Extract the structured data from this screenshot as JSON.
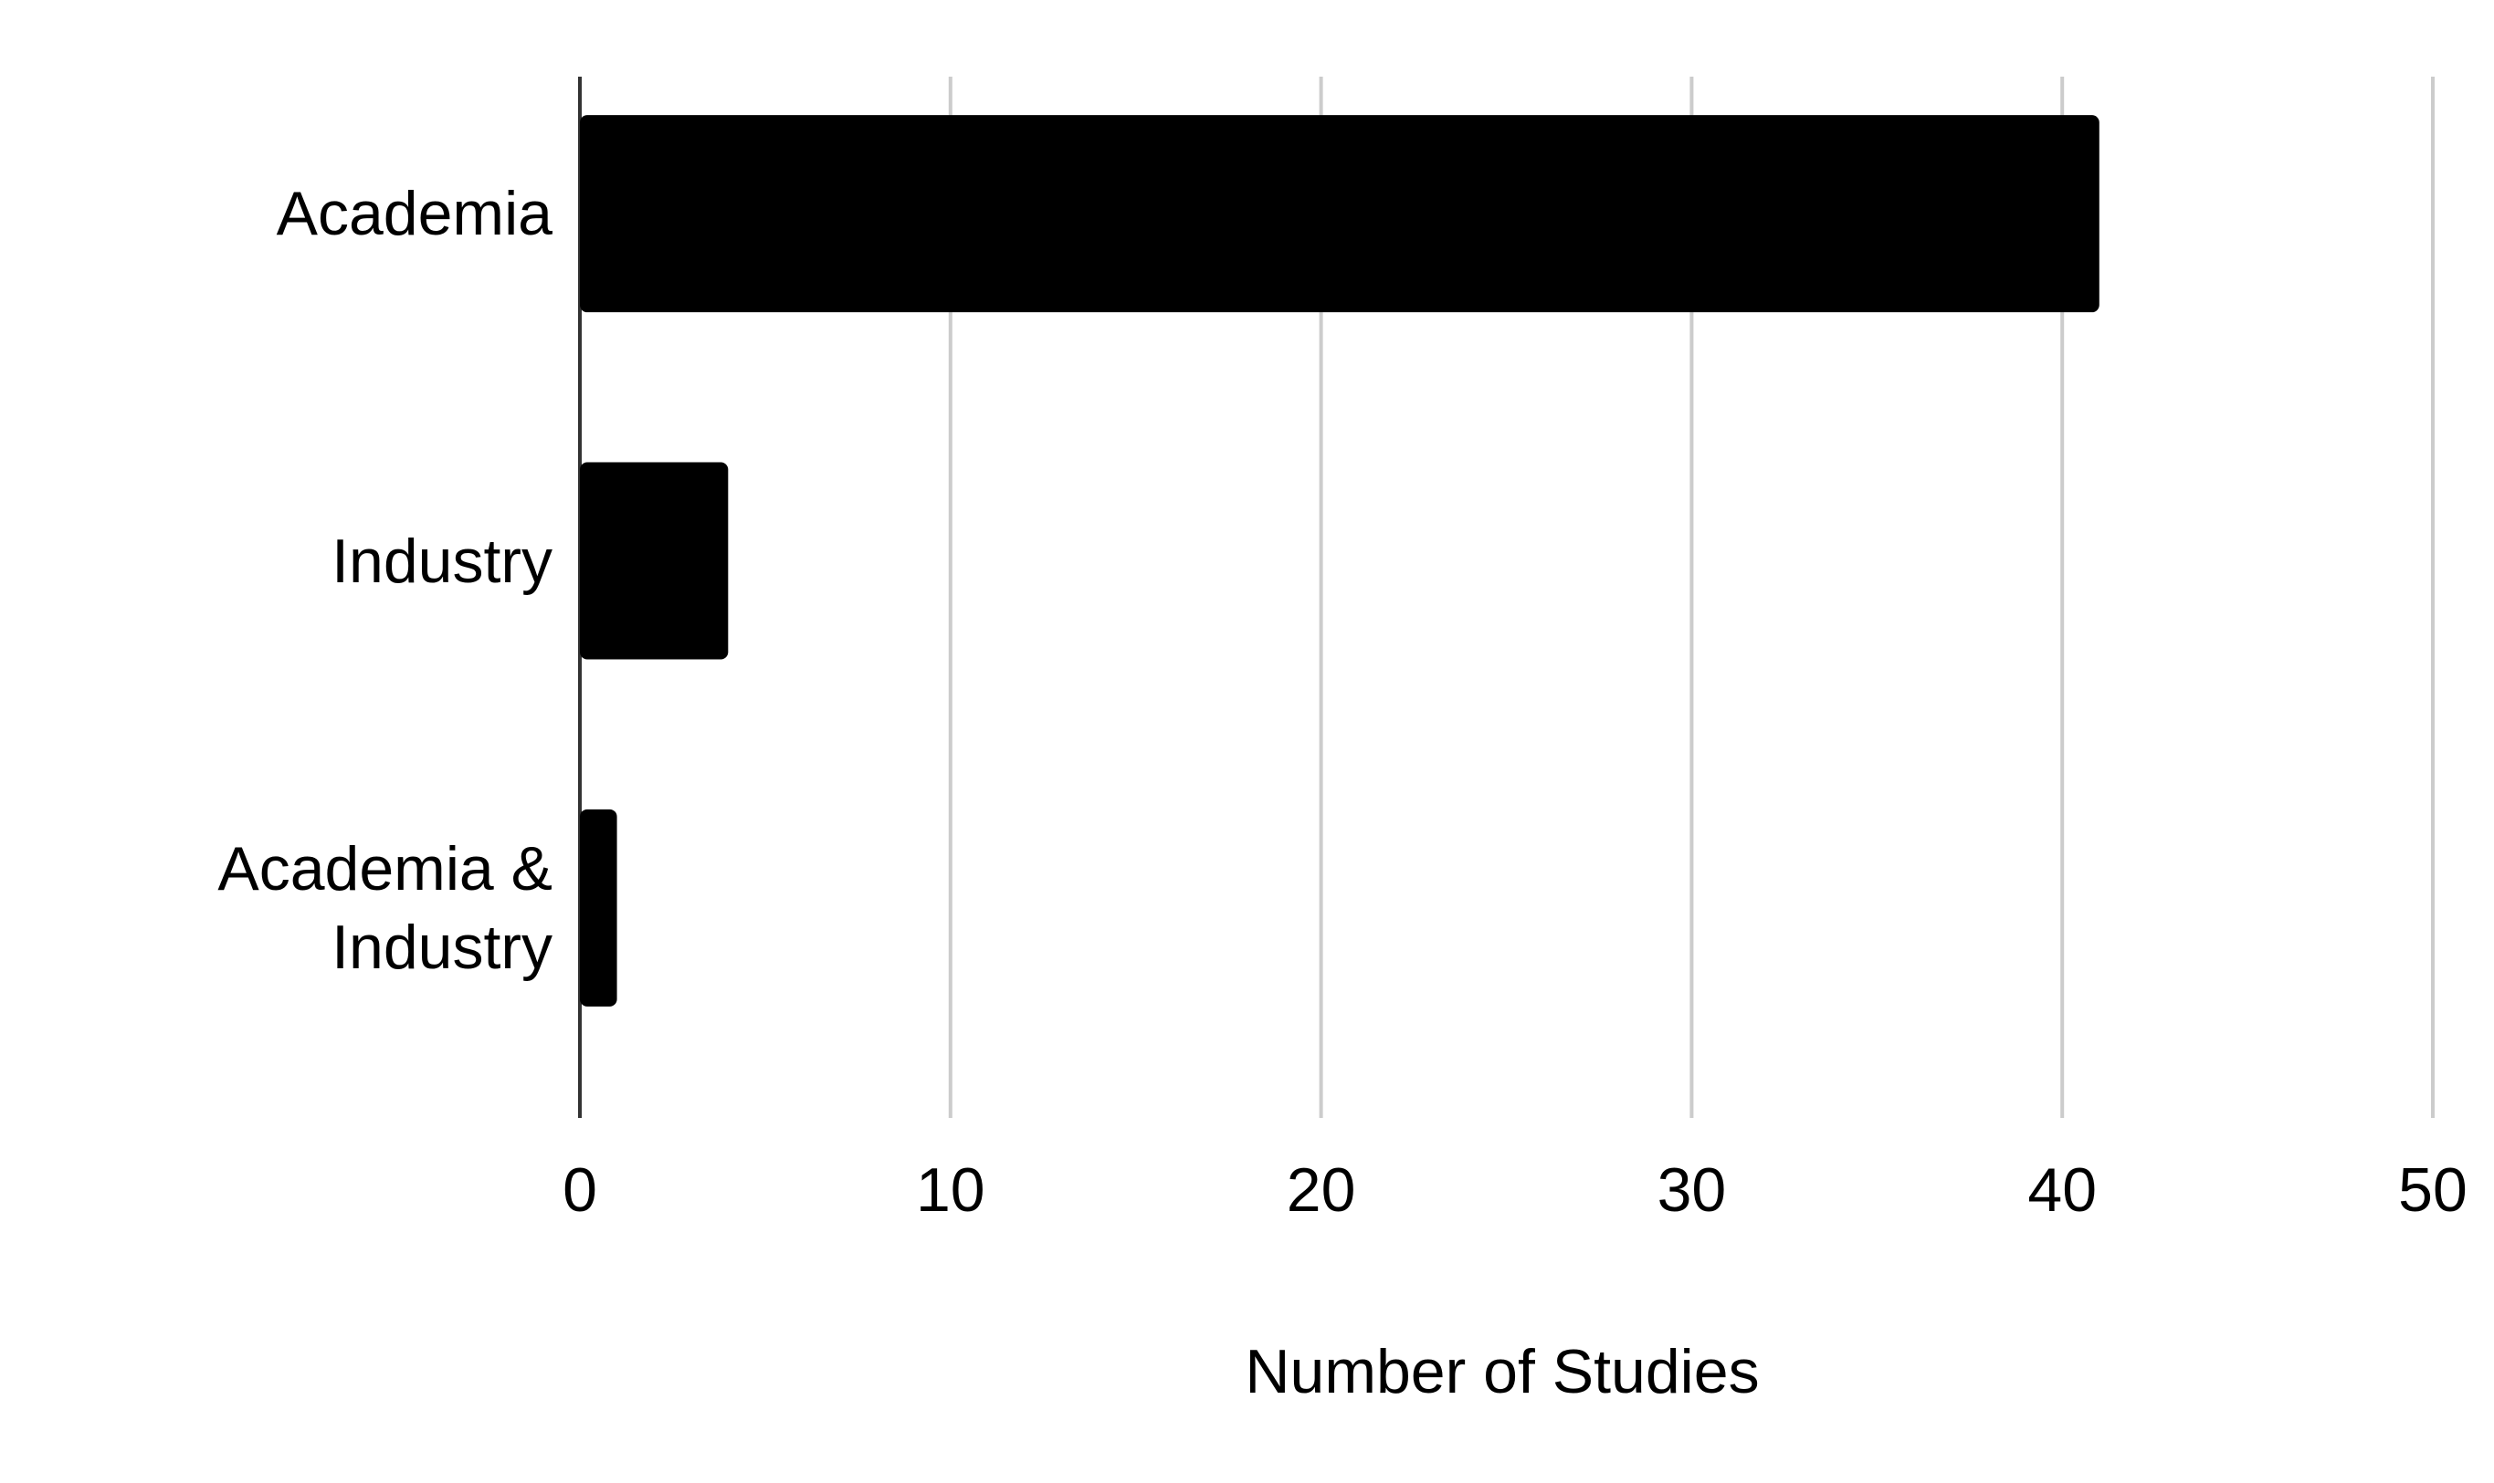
{
  "chart_data": {
    "type": "hbar",
    "x_label": "Number of Studies",
    "categories": [
      "Academia",
      "Industry",
      "Academia & Industry"
    ],
    "values": [
      41,
      4,
      1
    ],
    "color": "#000000",
    "xlim": [
      0,
      50
    ],
    "xticks": [
      0,
      10,
      20,
      30,
      40,
      50
    ],
    "grid": true
  }
}
